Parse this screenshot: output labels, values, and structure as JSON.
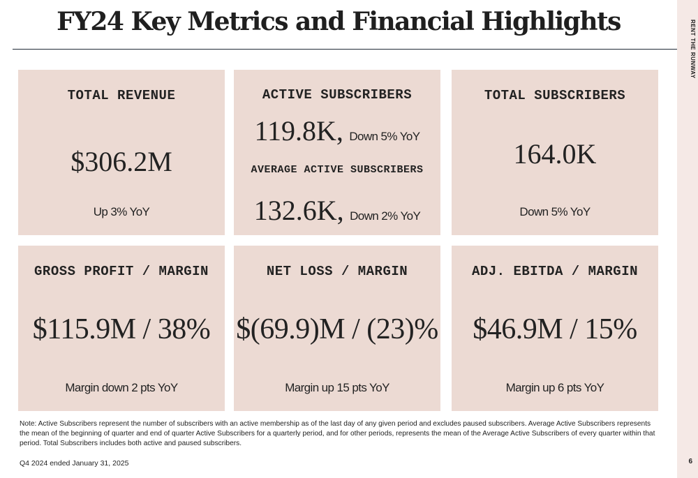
{
  "title": "FY24 Key Metrics and Financial Highlights",
  "sidebar": {
    "brand": "RENT THE RUNWAY",
    "page_number": "6"
  },
  "cards": {
    "revenue": {
      "label": "TOTAL REVENUE",
      "value": "$306.2M",
      "change": "Up 3% YoY"
    },
    "active": {
      "label": "ACTIVE SUBSCRIBERS",
      "value": "119.8K,",
      "change": "Down  5% YoY",
      "avg_label": "AVERAGE ACTIVE SUBSCRIBERS",
      "avg_value": "132.6K,",
      "avg_change": "Down 2% YoY"
    },
    "total_subs": {
      "label": "TOTAL SUBSCRIBERS",
      "value": "164.0K",
      "change": "Down 5% YoY"
    },
    "gross": {
      "label": "GROSS PROFIT / MARGIN",
      "value": "$115.9M / 38%",
      "change": "Margin down 2 pts YoY"
    },
    "net_loss": {
      "label": "NET LOSS / MARGIN",
      "value": "$(69.9)M / (23)%",
      "change": "Margin up 15 pts YoY"
    },
    "ebitda": {
      "label": "ADJ. EBITDA / MARGIN",
      "value": "$46.9M / 15%",
      "change": "Margin up 6 pts YoY"
    }
  },
  "note": "Note: Active Subscribers represent the number of subscribers with an active membership as of the last day of any given period and excludes paused subscribers. Average Active Subscribers represents the mean of the beginning of quarter and end of quarter Active Subscribers for a quarterly period,  and for other periods, represents the mean of the Average Active Subscribers of every quarter within that period.  Total Subscribers includes both active and paused subscribers.",
  "footer": "Q4 2024 ended January 31, 2025",
  "colors": {
    "card_bg": "#ecdad3",
    "sidebar_bg": "#f5e9e6",
    "rule": "#1f2a36",
    "text": "#222222"
  }
}
